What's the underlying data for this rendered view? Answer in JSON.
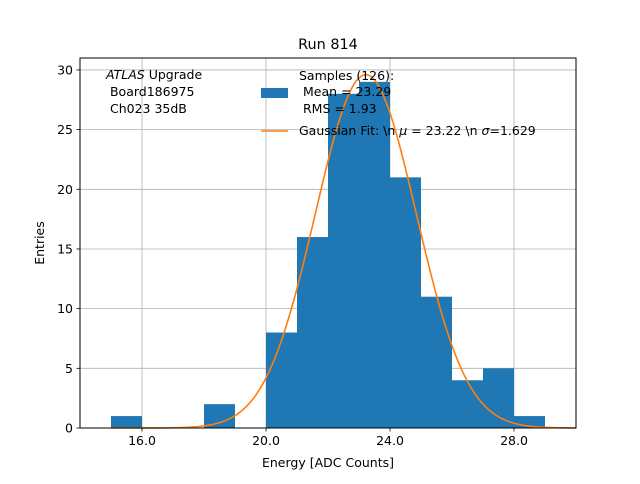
{
  "chart_data": {
    "type": "bar",
    "title": "Run 814",
    "xlabel": "Energy [ADC Counts]",
    "ylabel": "Entries",
    "xlim": [
      14.0,
      30.0
    ],
    "ylim": [
      0,
      31
    ],
    "grid": true,
    "legend_placement": "top-right",
    "x_ticks": [
      {
        "value": 16.0,
        "label": "16.0"
      },
      {
        "value": 20.0,
        "label": "20.0"
      },
      {
        "value": 24.0,
        "label": "24.0"
      },
      {
        "value": 28.0,
        "label": "28.0"
      }
    ],
    "y_ticks": [
      {
        "value": 0,
        "label": "0"
      },
      {
        "value": 5,
        "label": "5"
      },
      {
        "value": 10,
        "label": "10"
      },
      {
        "value": 15,
        "label": "15"
      },
      {
        "value": 20,
        "label": "20"
      },
      {
        "value": 25,
        "label": "25"
      },
      {
        "value": 30,
        "label": "30"
      }
    ],
    "histogram": {
      "bin_edges": [
        15,
        16,
        17,
        18,
        19,
        20,
        21,
        22,
        23,
        24,
        25,
        26,
        27,
        28,
        29,
        30
      ],
      "counts": [
        1,
        0,
        0,
        2,
        0,
        8,
        16,
        28,
        29,
        21,
        11,
        4,
        5,
        1,
        0
      ],
      "color": "#1f77b4"
    },
    "gaussian_fit": {
      "mu": 23.22,
      "sigma": 1.629,
      "peak": 29.6,
      "color": "#ff7f0e"
    },
    "annotation": {
      "line1_italic": "ATLAS",
      "line1_rest": " Upgrade",
      "line2": " Board186975",
      "line3": " Ch023 35dB"
    },
    "legend": {
      "samples_title": "Samples (126):",
      "samples_mean": " Mean = 23.29",
      "samples_rms": " RMS = 1.93",
      "fit_label_prefix": "Gaussian Fit: \\n ",
      "fit_mu_symbol": "μ",
      "fit_mu_value": " = 23.22 \\n ",
      "fit_sigma_symbol": "σ",
      "fit_sigma_value": "=1.629"
    }
  }
}
